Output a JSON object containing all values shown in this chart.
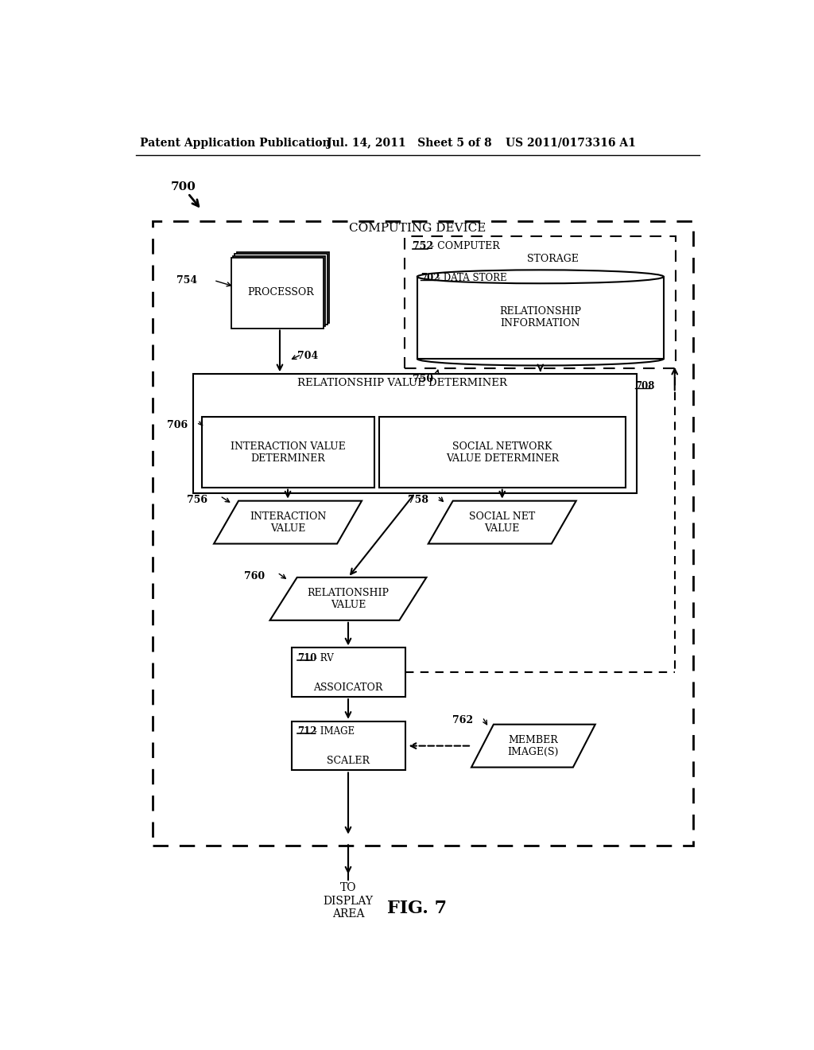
{
  "title": "FIG. 7",
  "header_left": "Patent Application Publication",
  "header_mid": "Jul. 14, 2011   Sheet 5 of 8",
  "header_right": "US 2011/0173316 A1",
  "bg_color": "#ffffff"
}
